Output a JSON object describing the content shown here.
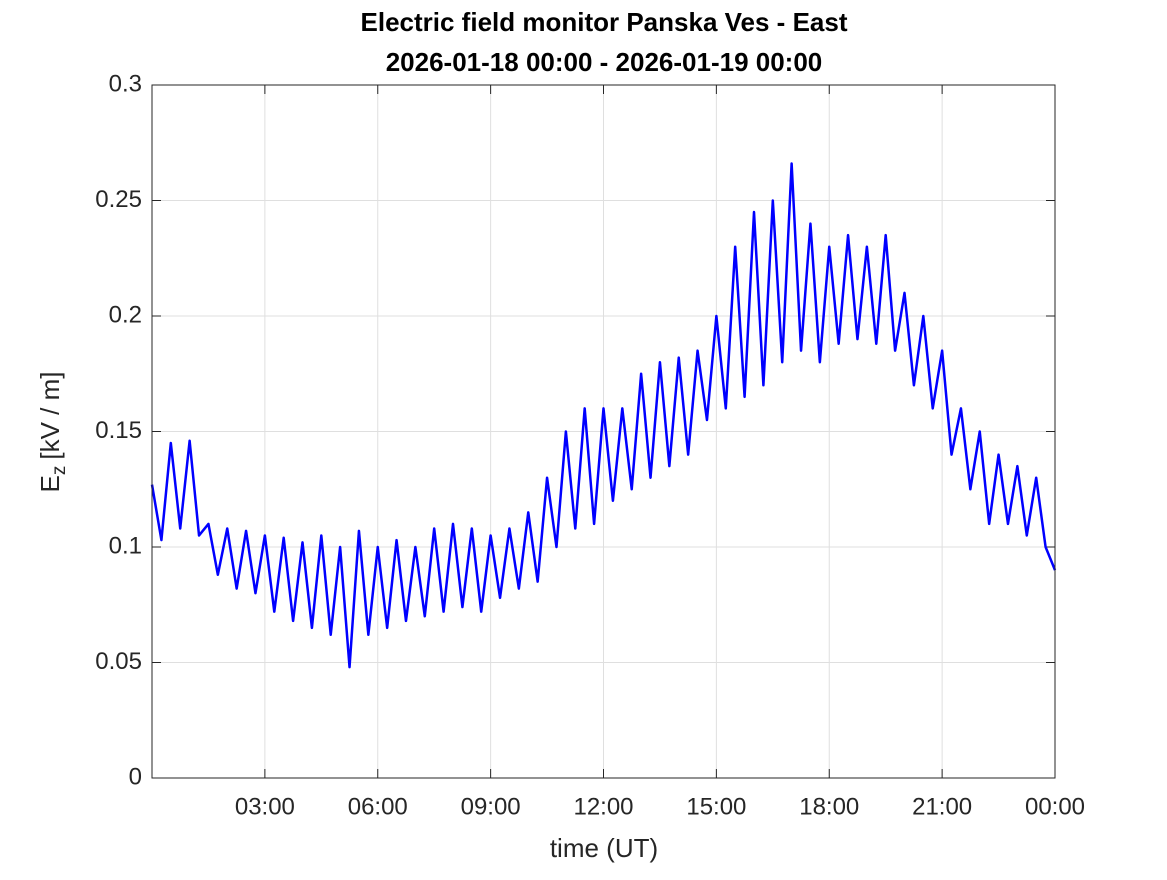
{
  "chart_data": {
    "type": "line",
    "title": [
      "Electric field monitor Panska Ves - East",
      "2026-01-18 00:00 - 2026-01-19 00:00"
    ],
    "xlabel": "time (UT)",
    "ylabel": {
      "symbol": "E",
      "subscript": "z",
      "unit": "[kV / m]"
    },
    "xlim": [
      0,
      24
    ],
    "xticks": [
      {
        "value": 3,
        "label": "03:00"
      },
      {
        "value": 6,
        "label": "06:00"
      },
      {
        "value": 9,
        "label": "09:00"
      },
      {
        "value": 12,
        "label": "12:00"
      },
      {
        "value": 15,
        "label": "15:00"
      },
      {
        "value": 18,
        "label": "18:00"
      },
      {
        "value": 21,
        "label": "21:00"
      },
      {
        "value": 24,
        "label": "00:00"
      }
    ],
    "ylim": [
      0,
      0.3
    ],
    "yticks": [
      0,
      0.05,
      0.1,
      0.15,
      0.2,
      0.25,
      0.3
    ],
    "grid": true,
    "x": [
      0,
      0.25,
      0.5,
      0.75,
      1,
      1.25,
      1.5,
      1.75,
      2,
      2.25,
      2.5,
      2.75,
      3,
      3.25,
      3.5,
      3.75,
      4,
      4.25,
      4.5,
      4.75,
      5,
      5.25,
      5.5,
      5.75,
      6,
      6.25,
      6.5,
      6.75,
      7,
      7.25,
      7.5,
      7.75,
      8,
      8.25,
      8.5,
      8.75,
      9,
      9.25,
      9.5,
      9.75,
      10,
      10.25,
      10.5,
      10.75,
      11,
      11.25,
      11.5,
      11.75,
      12,
      12.25,
      12.5,
      12.75,
      13,
      13.25,
      13.5,
      13.75,
      14,
      14.25,
      14.5,
      14.75,
      15,
      15.25,
      15.5,
      15.75,
      16,
      16.25,
      16.5,
      16.75,
      17,
      17.25,
      17.5,
      17.75,
      18,
      18.25,
      18.5,
      18.75,
      19,
      19.25,
      19.5,
      19.75,
      20,
      20.25,
      20.5,
      20.75,
      21,
      21.25,
      21.5,
      21.75,
      22,
      22.25,
      22.5,
      22.75,
      23,
      23.25,
      23.5,
      23.75,
      24
    ],
    "series": [
      {
        "color": "#0000ff",
        "values": [
          0.127,
          0.103,
          0.145,
          0.108,
          0.146,
          0.105,
          0.11,
          0.088,
          0.108,
          0.082,
          0.107,
          0.08,
          0.105,
          0.072,
          0.104,
          0.068,
          0.102,
          0.065,
          0.105,
          0.062,
          0.1,
          0.048,
          0.107,
          0.062,
          0.1,
          0.065,
          0.103,
          0.068,
          0.1,
          0.07,
          0.108,
          0.072,
          0.11,
          0.074,
          0.108,
          0.072,
          0.105,
          0.078,
          0.108,
          0.082,
          0.115,
          0.085,
          0.13,
          0.1,
          0.15,
          0.108,
          0.16,
          0.11,
          0.16,
          0.12,
          0.16,
          0.125,
          0.175,
          0.13,
          0.18,
          0.135,
          0.182,
          0.14,
          0.185,
          0.155,
          0.2,
          0.16,
          0.23,
          0.165,
          0.245,
          0.17,
          0.25,
          0.18,
          0.266,
          0.185,
          0.24,
          0.18,
          0.23,
          0.188,
          0.235,
          0.19,
          0.23,
          0.188,
          0.235,
          0.185,
          0.21,
          0.17,
          0.2,
          0.16,
          0.185,
          0.14,
          0.16,
          0.125,
          0.15,
          0.11,
          0.14,
          0.11,
          0.135,
          0.105,
          0.13,
          0.1,
          0.09
        ]
      }
    ]
  }
}
